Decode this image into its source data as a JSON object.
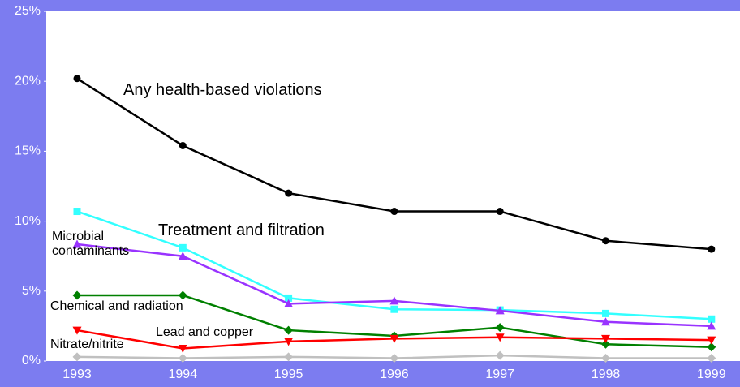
{
  "chart_data": {
    "type": "line",
    "categories": [
      "1993",
      "1994",
      "1995",
      "1996",
      "1997",
      "1998",
      "1999"
    ],
    "series": [
      {
        "name": "Any health-based violations",
        "color": "#000000",
        "marker": "circle",
        "values": [
          20.2,
          15.4,
          12.0,
          10.7,
          10.7,
          8.6,
          8.0
        ]
      },
      {
        "name": "Treatment and filtration",
        "color": "#33ffff",
        "marker": "square",
        "values": [
          10.7,
          8.1,
          4.5,
          3.7,
          3.65,
          3.4,
          3.0
        ]
      },
      {
        "name": "Microbial contaminants",
        "color": "#9933ff",
        "marker": "triangle",
        "values": [
          8.35,
          7.5,
          4.1,
          4.3,
          3.6,
          2.8,
          2.5
        ]
      },
      {
        "name": "Chemical and radiation",
        "color": "#008000",
        "marker": "diamond",
        "values": [
          4.7,
          4.7,
          2.2,
          1.8,
          2.4,
          1.2,
          1.0
        ]
      },
      {
        "name": "Lead and copper",
        "color": "#ff0000",
        "marker": "triangle-down",
        "values": [
          2.2,
          0.9,
          1.4,
          1.6,
          1.7,
          1.6,
          1.5
        ]
      },
      {
        "name": "Nitrate/nitrite",
        "color": "#c0c0c0",
        "marker": "diamond",
        "values": [
          0.3,
          0.2,
          0.3,
          0.2,
          0.4,
          0.2,
          0.2
        ]
      }
    ],
    "ylim": [
      0,
      25
    ],
    "yticks": [
      {
        "value": 0,
        "label": "0%"
      },
      {
        "value": 5,
        "label": "5%"
      },
      {
        "value": 10,
        "label": "10%"
      },
      {
        "value": 15,
        "label": "15%"
      },
      {
        "value": 20,
        "label": "20%"
      },
      {
        "value": 25,
        "label": "25%"
      }
    ],
    "grid": false
  }
}
